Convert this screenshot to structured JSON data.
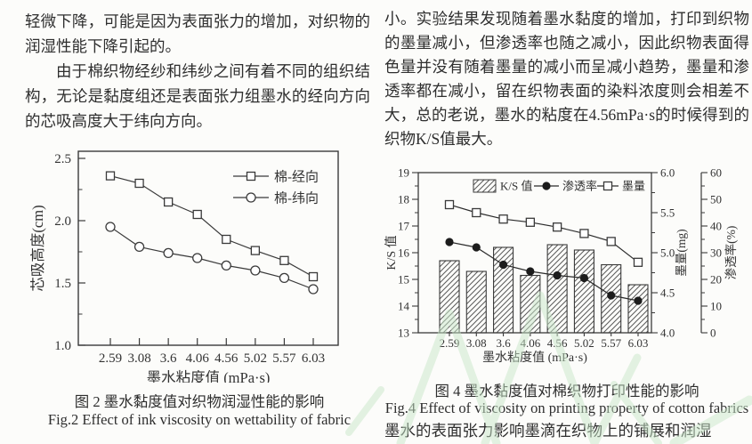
{
  "page": {
    "ink_color": "#3a3a3a",
    "text_color": "#2e2e2e",
    "background": "#fcfcfa",
    "watermark_color": "#c9e7c9"
  },
  "text": {
    "left_column": {
      "p1": "轻微下降，可能是因为表面张力的增加，对织物的润湿性能下降引起的。",
      "p2": "由于棉织物经纱和纬纱之间有着不同的组织结构，无论是黏度组还是表面张力组墨水的经向方向的芯吸高度大于纬向方向。"
    },
    "right_column": {
      "p1": "小。实验结果发现随着墨水黏度的增加，打印到织物的墨量减小，但渗透率也随之减小，因此织物表面得色量并没有随着墨量的减小而呈减小趋势，墨量和渗透率都在减小，留在织物表面的染料浓度则会相差不大，总的老说，墨水的粘度在4.56mPa·s的时候得到的织物K/S值最大。",
      "p2": "墨水的表面张力影响墨滴在织物上的铺展和润湿"
    }
  },
  "figures": {
    "fig2": {
      "caption_cn": "图 2 墨水黏度值对织物润湿性能的影响",
      "caption_en": "Fig.2 Effect of ink viscosity on wettability of fabric"
    },
    "fig4": {
      "caption_cn": "图 4 墨水黏度值对棉织物打印性能的影响",
      "caption_en": "Fig.4 Effect of viscosity on printing property of cotton fabrics"
    }
  },
  "chart_data": [
    {
      "id": "fig2",
      "type": "line",
      "title": "",
      "xlabel": "墨水粘度值 (mPa·s)",
      "ylabel": "芯吸高度(cm)",
      "categories": [
        "2.59",
        "3.08",
        "3.6",
        "4.06",
        "4.56",
        "5.02",
        "5.57",
        "6.03"
      ],
      "ylim": [
        1.0,
        2.5
      ],
      "yticks": [
        1.0,
        1.5,
        2.0,
        2.5
      ],
      "yticks_minor": [
        1.25,
        1.75,
        2.25
      ],
      "grid": false,
      "legend_position": "top-right-inside",
      "series": [
        {
          "name": "棉-经向",
          "marker": "square-open",
          "values": [
            2.36,
            2.3,
            2.15,
            2.05,
            1.85,
            1.76,
            1.68,
            1.55
          ]
        },
        {
          "name": "棉-纬向",
          "marker": "circle-open",
          "values": [
            1.95,
            1.79,
            1.74,
            1.7,
            1.64,
            1.6,
            1.54,
            1.45
          ]
        }
      ]
    },
    {
      "id": "fig4",
      "type": "bar",
      "title": "",
      "xlabel": "墨水粘度值 (mPa·s)",
      "ylabel_left": "K/S 值",
      "ylabel_right_inner": "墨量(mg)",
      "ylabel_right_outer": "渗透率(%)",
      "categories": [
        "2.59",
        "3.08",
        "3.6",
        "4.06",
        "4.56",
        "5.02",
        "5.57",
        "6.03"
      ],
      "ylim_left": [
        13,
        19
      ],
      "yticks_left": [
        13,
        14,
        15,
        16,
        17,
        18,
        19
      ],
      "ylim_right_inner": [
        4.0,
        6.0
      ],
      "yticks_right_inner": [
        4.0,
        4.5,
        5.0,
        5.5,
        6.0
      ],
      "ylim_right_outer": [
        0,
        60
      ],
      "yticks_right_outer": [
        0,
        10,
        20,
        30,
        40,
        50,
        60
      ],
      "grid": false,
      "legend_position": "top-inside",
      "series": [
        {
          "name": "K/S 值",
          "plot": "bar",
          "style": "hatched",
          "axis": "left",
          "values": [
            15.7,
            15.3,
            16.2,
            15.15,
            16.3,
            16.1,
            15.55,
            14.8
          ]
        },
        {
          "name": "渗透率",
          "plot": "line",
          "marker": "circle-filled",
          "axis": "right_outer",
          "values": [
            34,
            32,
            25.5,
            23,
            21.5,
            20.5,
            14,
            12
          ]
        },
        {
          "name": "墨量",
          "plot": "line",
          "marker": "square-open",
          "axis": "right_inner",
          "values": [
            5.6,
            5.5,
            5.42,
            5.38,
            5.32,
            5.24,
            5.14,
            4.88
          ]
        }
      ]
    }
  ]
}
